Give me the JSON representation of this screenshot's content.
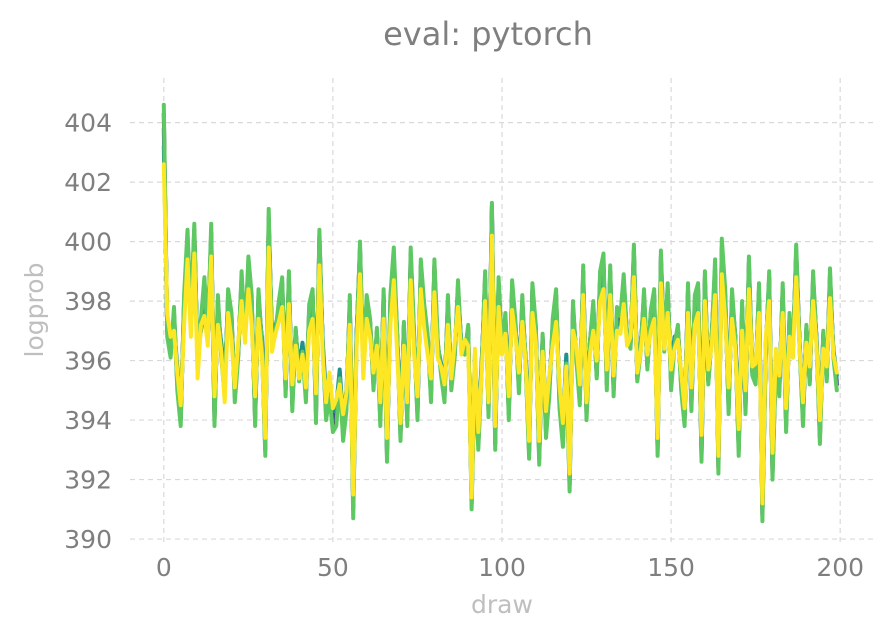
{
  "chart_data": {
    "type": "line",
    "title": "eval: pytorch",
    "xlabel": "draw",
    "ylabel": "logprob",
    "xlim": [
      -10,
      210
    ],
    "ylim": [
      389.8,
      405.5
    ],
    "xticks": [
      0,
      50,
      100,
      150,
      200
    ],
    "yticks": [
      390,
      392,
      394,
      396,
      398,
      400,
      402,
      404
    ],
    "grid": true,
    "colors": [
      "#440154",
      "#3b528b",
      "#21918c",
      "#5ec962",
      "#fde725",
      "#7ad151",
      "#b5de2b"
    ],
    "draws": 200,
    "series": [
      {
        "values": [
          404.3,
          397,
          396.2,
          397.6,
          395.2,
          394,
          398,
          400.1,
          397.4,
          400.4,
          396,
          397.3,
          398.6,
          396.8,
          400.3,
          394,
          398,
          396.2,
          395,
          398.2,
          397.5,
          394.8,
          396.2,
          398.8,
          396.9,
          399.2,
          398,
          394,
          398.2,
          396.6,
          393,
          400.8,
          396.6,
          397,
          397.8,
          398.6,
          395,
          398.8,
          394.5,
          397,
          395.5,
          396.4,
          394.8,
          397.7,
          398.2,
          394.2,
          400.2,
          396.4,
          394.2,
          395,
          393.8,
          394,
          395.5,
          393.5,
          394.5,
          398,
          391,
          396.8,
          399.8,
          395.7,
          398,
          397.3,
          395.2,
          397,
          394,
          398.2,
          392.8,
          398,
          399.5,
          396.8,
          393.5,
          397.2,
          394,
          399.6,
          396.8,
          394.2,
          399.2,
          397.8,
          396.8,
          394.8,
          399.2,
          396.6,
          395.6,
          394.8,
          398,
          395.2,
          396.2,
          398.5,
          396.4,
          396.3,
          397.1,
          391.2,
          396,
          393.2,
          395.8,
          398.8,
          394.3,
          401.2,
          393.2,
          398.6,
          396.5,
          397.5,
          394.2,
          398.5,
          397.2,
          395.1,
          398,
          395.9,
          392.9,
          398.4,
          397.1,
          392.7,
          396.8,
          393.6,
          395,
          397.2,
          398.2,
          394.6,
          393.3,
          396,
          391.8,
          397.8,
          396.1,
          394.7,
          399,
          394.2,
          396.6,
          397.8,
          395.5,
          398.8,
          399.3,
          395.2,
          399,
          395,
          397.6,
          397.4,
          398.7,
          396.8,
          396.5,
          399.7,
          395.4,
          396.4,
          398.2,
          395.8,
          397.6,
          398.2,
          393,
          399.5,
          396.4,
          398.4,
          395.2,
          396.6,
          397.1,
          395.2,
          394,
          398.4,
          394.5,
          398,
          398.4,
          392.8,
          398.8,
          395.3,
          396.8,
          399.1,
          392.4,
          399.8,
          398.2,
          394.4,
          398.2,
          396.8,
          393,
          397.8,
          394.4,
          399.3,
          395.6,
          395.4,
          398.4,
          390.8,
          396.4,
          398.8,
          392.2,
          396,
          395,
          398.4,
          393.8,
          397.4,
          396.2,
          399.7,
          396.5,
          394,
          397.1,
          395.3,
          398.8,
          396.7,
          393.4,
          396.9,
          395.4,
          398.9,
          396.2,
          395.2
        ]
      },
      {
        "values": [
          403.8,
          397.2,
          396.4,
          397.4,
          395.4,
          394.1,
          397.8,
          400,
          397.2,
          400.2,
          396.1,
          397.1,
          398.3,
          396.9,
          400.2,
          394.2,
          397.8,
          396.4,
          395.2,
          398,
          397.3,
          395,
          396.3,
          398.6,
          396.8,
          399,
          397.8,
          394.2,
          398,
          396.7,
          393.2,
          400.6,
          396.8,
          397.1,
          397.7,
          398.4,
          395.2,
          398.5,
          394.7,
          396.9,
          395.6,
          396.5,
          395,
          397.5,
          398,
          394.4,
          399.9,
          396.5,
          394.4,
          395.2,
          394,
          394.2,
          395.6,
          393.7,
          394.7,
          397.8,
          391.2,
          396.9,
          399.6,
          395.8,
          397.9,
          397.1,
          395.3,
          396.9,
          394.2,
          398,
          393,
          397.8,
          399.3,
          396.8,
          393.7,
          397,
          394.2,
          399.4,
          396.7,
          394.4,
          399,
          397.6,
          396.7,
          395,
          399,
          396.5,
          395.7,
          395,
          397.8,
          395.3,
          396.3,
          398.3,
          396.5,
          396.4,
          397,
          391.4,
          396.1,
          393.4,
          395.9,
          398.6,
          394.5,
          401,
          393.4,
          398.4,
          396.6,
          397.3,
          394.4,
          398.3,
          397.1,
          395.3,
          397.8,
          396,
          393.1,
          398.2,
          397,
          392.9,
          396.7,
          393.8,
          395.2,
          397,
          398,
          394.8,
          393.5,
          396.1,
          392,
          397.6,
          396.2,
          394.9,
          398.8,
          394.4,
          396.6,
          397.6,
          395.6,
          398.6,
          399.1,
          395.4,
          398.8,
          395.2,
          397.5,
          397.3,
          398.5,
          396.8,
          396.6,
          399.5,
          395.5,
          396.5,
          398,
          395.9,
          397.5,
          398,
          393.2,
          399.3,
          396.5,
          398.2,
          395.4,
          396.7,
          397,
          395.3,
          394.2,
          398.2,
          394.7,
          397.8,
          398.2,
          393,
          398.6,
          395.4,
          396.8,
          398.9,
          392.6,
          399.6,
          398,
          394.6,
          398,
          396.8,
          393.2,
          397.6,
          394.6,
          399.1,
          395.7,
          395.6,
          398.2,
          391,
          396.5,
          398.6,
          392.4,
          396.1,
          395.2,
          398.2,
          394,
          397.2,
          396.3,
          399.5,
          396.6,
          394.2,
          397,
          395.4,
          398.6,
          396.7,
          393.6,
          396.8,
          395.5,
          398.7,
          396.3,
          395.3
        ]
      },
      {
        "values": [
          403.2,
          397.4,
          396.6,
          397.2,
          395.8,
          394.4,
          397.5,
          399.7,
          397.2,
          399.8,
          396.3,
          397,
          397.9,
          397,
          399.8,
          394.6,
          397.5,
          396.6,
          395.5,
          397.7,
          397.1,
          395.3,
          396.4,
          398.3,
          396.9,
          398.7,
          397.5,
          394.6,
          397.7,
          396.8,
          393.6,
          400.2,
          397,
          397.2,
          397.5,
          398.1,
          395.5,
          398.2,
          395,
          396.8,
          395.8,
          396.6,
          395.3,
          397.3,
          397.7,
          394.7,
          399.5,
          396.6,
          394.8,
          395.4,
          394.3,
          394.5,
          395.7,
          394,
          395,
          397.5,
          391.6,
          396.9,
          399.2,
          396,
          397.7,
          397,
          395.5,
          396.8,
          394.5,
          397.7,
          393.4,
          397.5,
          399,
          396.8,
          394,
          396.8,
          394.5,
          399,
          396.7,
          394.7,
          398.7,
          397.4,
          396.6,
          395.2,
          398.6,
          396.5,
          395.9,
          395.3,
          397.5,
          395.5,
          396.4,
          398,
          396.6,
          396.5,
          396.9,
          391.8,
          396.2,
          393.8,
          396,
          398.3,
          394.8,
          400.5,
          393.7,
          398.1,
          396.7,
          397.1,
          394.7,
          398,
          397,
          395.5,
          397.6,
          396.1,
          393.4,
          397.9,
          396.9,
          393.2,
          396.6,
          394.1,
          395.4,
          396.8,
          397.7,
          395.1,
          393.8,
          396.2,
          392.4,
          397.3,
          396.3,
          395.1,
          398.5,
          394.7,
          396.6,
          397.3,
          395.8,
          398.3,
          398.7,
          395.6,
          398.5,
          395.4,
          397.3,
          397.2,
          398.2,
          396.8,
          396.7,
          399.1,
          395.7,
          396.6,
          397.7,
          396,
          397.3,
          397.7,
          393.6,
          398.9,
          396.6,
          397.9,
          395.6,
          396.8,
          396.9,
          395.5,
          394.5,
          397.9,
          395,
          397.5,
          397.9,
          393.4,
          398.3,
          395.6,
          396.8,
          398.5,
          393,
          399.2,
          397.7,
          394.9,
          397.7,
          396.8,
          393.6,
          397.3,
          394.9,
          398.7,
          395.9,
          395.8,
          397.9,
          391.4,
          396.6,
          398.3,
          392.8,
          396.2,
          395.4,
          397.9,
          394.3,
          397,
          396.4,
          399.1,
          396.6,
          394.5,
          396.9,
          395.6,
          398.3,
          396.8,
          393.9,
          396.7,
          395.7,
          398.4,
          396.4,
          395.5
        ]
      },
      {
        "values": [
          404.6,
          396.8,
          396.1,
          397.8,
          395,
          393.8,
          398.2,
          400.4,
          397.5,
          400.6,
          395.9,
          397.4,
          398.8,
          396.7,
          400.6,
          393.8,
          398.2,
          396.1,
          394.8,
          398.4,
          397.6,
          394.6,
          396.1,
          399,
          396.8,
          399.5,
          398.2,
          393.8,
          398.4,
          396.5,
          392.8,
          401.1,
          396.5,
          396.9,
          398,
          398.8,
          394.8,
          399,
          394.3,
          397.1,
          395.3,
          396.3,
          394.6,
          397.9,
          398.4,
          393.9,
          400.4,
          396.3,
          394,
          394.8,
          393.6,
          393.8,
          395.4,
          393.3,
          394.3,
          398.2,
          390.7,
          396.7,
          400,
          395.6,
          398.2,
          397.4,
          395,
          397.1,
          393.8,
          398.4,
          392.6,
          398.2,
          399.8,
          396.9,
          393.3,
          397.3,
          393.8,
          399.8,
          396.9,
          394,
          399.4,
          397.9,
          396.9,
          394.6,
          399.4,
          396.7,
          395.5,
          394.6,
          398.2,
          395,
          396.1,
          398.7,
          396.3,
          396.2,
          397.2,
          391,
          395.9,
          393,
          395.7,
          399,
          394.1,
          401.3,
          393,
          398.8,
          396.4,
          397.6,
          394,
          398.7,
          397.3,
          394.9,
          398.2,
          395.8,
          392.7,
          398.6,
          397.2,
          392.5,
          396.9,
          393.4,
          394.8,
          397.4,
          398.4,
          394.4,
          393.1,
          395.9,
          391.6,
          398,
          396,
          394.5,
          399.2,
          394,
          396.6,
          398,
          395.4,
          399,
          399.6,
          395,
          399.2,
          394.8,
          397.8,
          397.5,
          398.9,
          396.8,
          396.4,
          399.9,
          395.3,
          396.3,
          398.4,
          395.7,
          397.7,
          398.4,
          392.8,
          399.7,
          396.3,
          398.6,
          395,
          396.5,
          397.2,
          395,
          393.8,
          398.6,
          394.3,
          398.2,
          398.6,
          392.6,
          399,
          395.2,
          396.8,
          399.4,
          392.2,
          400.1,
          398.4,
          394.2,
          398.4,
          396.8,
          392.8,
          398,
          394.2,
          399.5,
          395.5,
          395.2,
          398.6,
          390.6,
          396.3,
          399,
          392,
          395.9,
          394.8,
          398.6,
          393.6,
          397.6,
          396.1,
          399.9,
          396.4,
          393.8,
          397.2,
          395.2,
          399,
          396.6,
          393.2,
          397,
          395.3,
          399.1,
          396.1,
          395
        ]
      },
      {
        "values": [
          402.6,
          397.6,
          396.8,
          397,
          395.6,
          394.5,
          397.2,
          399.4,
          396.8,
          399.6,
          395.4,
          397.2,
          397.5,
          396.5,
          399.5,
          394.8,
          397.2,
          396.3,
          394.6,
          397.6,
          396.7,
          395.1,
          396.6,
          398,
          396.6,
          398.4,
          397.2,
          394.8,
          397.4,
          396.2,
          393.4,
          399.8,
          396.3,
          396.9,
          397.3,
          397.8,
          395.4,
          397.9,
          395.2,
          396.5,
          395.4,
          396.2,
          395.1,
          397,
          397.4,
          394.9,
          399.2,
          396.1,
          394.6,
          395.6,
          394.4,
          394.7,
          395.2,
          394.2,
          394.9,
          397.2,
          391.5,
          396.4,
          398.9,
          395.4,
          397.4,
          396.8,
          395.6,
          396.5,
          394.6,
          397.4,
          393.4,
          397.2,
          398.7,
          396.2,
          393.9,
          396.5,
          394.6,
          398.7,
          396.2,
          394.8,
          398.4,
          397.1,
          396.2,
          395.4,
          398.3,
          396.1,
          395.8,
          395.2,
          397.2,
          395.4,
          396.6,
          397.8,
          396.2,
          396.7,
          396.5,
          391.4,
          396.4,
          393.6,
          395.6,
          398,
          394.6,
          400.2,
          393.8,
          397.8,
          396.2,
          396.9,
          394.8,
          397.7,
          396.8,
          395.6,
          397.3,
          395.9,
          393.3,
          397.6,
          396.6,
          393.3,
          396.3,
          394.3,
          395.5,
          396.5,
          397.3,
          395.2,
          393.9,
          395.8,
          392.2,
          397,
          396.5,
          395.2,
          398.2,
          394.6,
          396.2,
          397,
          396,
          398,
          398.4,
          395.7,
          398.2,
          395.5,
          397,
          396.9,
          397.9,
          396.5,
          396.8,
          398.8,
          395.6,
          396.3,
          397.4,
          396.2,
          397,
          397.4,
          393.4,
          398.6,
          396.4,
          397.6,
          395.7,
          396.4,
          396.7,
          395.6,
          394.4,
          397.6,
          395.1,
          397.2,
          397.6,
          393.5,
          398,
          395.7,
          396.5,
          398.2,
          392.8,
          398.9,
          397.4,
          395.1,
          397.4,
          396.4,
          393.7,
          397,
          395,
          398.4,
          395.8,
          395.9,
          397.6,
          391.2,
          396.8,
          398,
          392.9,
          396.4,
          395.5,
          397.6,
          394.4,
          396.8,
          396.1,
          398.8,
          396.4,
          394.6,
          396.6,
          395.8,
          398,
          396.5,
          394,
          396.4,
          395.8,
          398.1,
          396.2,
          395.6
        ]
      }
    ]
  }
}
